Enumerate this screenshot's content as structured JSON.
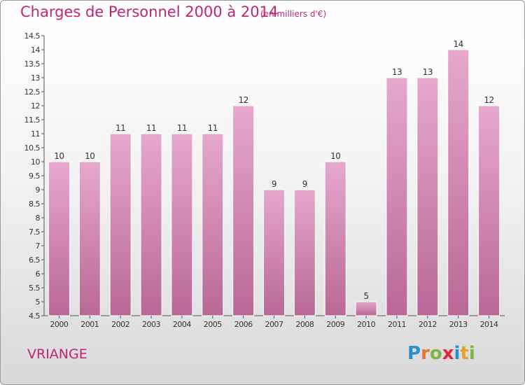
{
  "title": "Charges de Personnel 2000 à 2014",
  "subtitle": "(en milliers d'€)",
  "commune": "VRIANGE",
  "logo": {
    "letters": [
      "P",
      "r",
      "o",
      "x",
      "i",
      "t",
      "i"
    ],
    "colors": [
      "#2a8fd4",
      "#e8762b",
      "#7cb83e",
      "#e0263f",
      "#2a8fd4",
      "#e8a22b",
      "#7cb83e"
    ]
  },
  "colors": {
    "bar_top": "#e6a8cc",
    "bar_bottom": "#b96896",
    "accent": "#c2246e"
  },
  "chart_data": {
    "type": "bar",
    "categories": [
      "2000",
      "2001",
      "2002",
      "2003",
      "2004",
      "2005",
      "2006",
      "2007",
      "2008",
      "2009",
      "2010",
      "2011",
      "2012",
      "2013",
      "2014"
    ],
    "values": [
      10,
      10,
      11,
      11,
      11,
      11,
      12,
      9,
      9,
      10,
      5,
      13,
      13,
      14,
      12
    ],
    "value_labels": [
      "10",
      "10",
      "11",
      "11",
      "11",
      "11",
      "12",
      "9",
      "9",
      "10",
      "5",
      "13",
      "13",
      "14",
      "12"
    ],
    "ylim": [
      4.5,
      14.5
    ],
    "yticks": [
      "4.5",
      "5",
      "5.5",
      "6",
      "6.5",
      "7",
      "7.5",
      "8",
      "8.5",
      "9",
      "9.5",
      "10",
      "10.5",
      "11",
      "11.5",
      "12",
      "12.5",
      "13",
      "13.5",
      "14",
      "14.5"
    ],
    "grid": false
  }
}
